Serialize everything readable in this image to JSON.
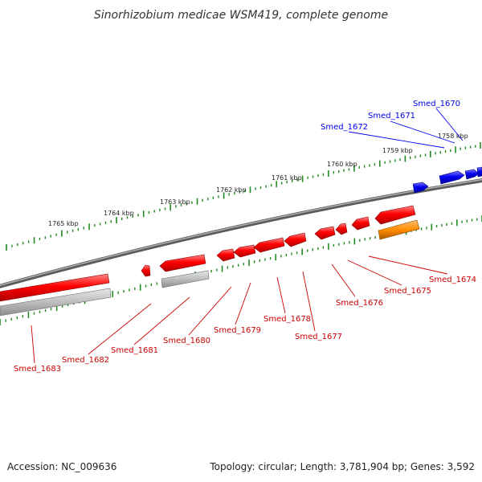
{
  "title": "Sinorhizobium medicae WSM419, complete genome",
  "footer": {
    "accession": "Accession: NC_009636",
    "summary": "Topology: circular; Length: 3,781,904 bp; Genes: 3,592"
  },
  "scale_ticks": [
    "1765 kbp",
    "1764 kbp",
    "1763 kbp",
    "1762 kbp",
    "1761 kbp",
    "1760 kbp",
    "1759 kbp",
    "1758 kbp"
  ],
  "genes_forward": [
    "Smed_1672",
    "Smed_1671",
    "Smed_1670"
  ],
  "genes_reverse": [
    "Smed_1683",
    "Smed_1682",
    "Smed_1681",
    "Smed_1680",
    "Smed_1679",
    "Smed_1678",
    "Smed_1677",
    "Smed_1676",
    "Smed_1675",
    "Smed_1674"
  ],
  "colors": {
    "forward_gene": "#0000ee",
    "reverse_gene": "#ff0000",
    "reverse_label": "#cc0000",
    "rna_feature": "#ff8c00",
    "pseudo_feature": "#b5b5b5",
    "backbone": "#7a7a7a",
    "ruler": "#228b22"
  }
}
